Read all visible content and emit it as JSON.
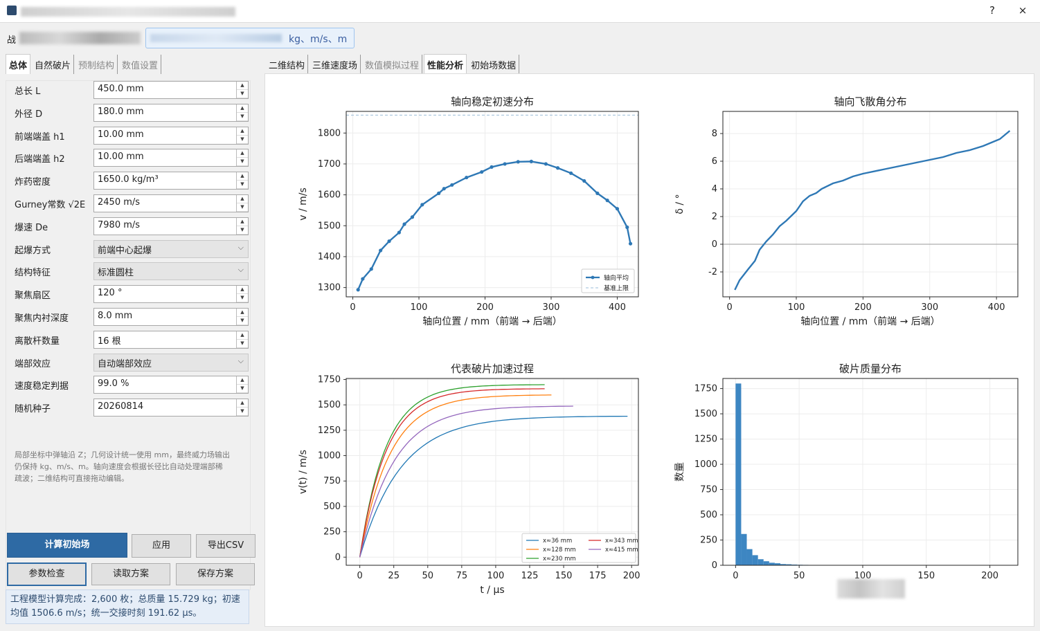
{
  "window": {
    "help_glyph": "?",
    "close_glyph": "×"
  },
  "unitbar": {
    "prefix": "战",
    "units_text": "kg、m/s、m"
  },
  "left_tabs": [
    {
      "label": "总体",
      "active": true
    },
    {
      "label": "自然破片",
      "active": false
    },
    {
      "label": "预制结构",
      "active": false,
      "dim": true
    },
    {
      "label": "数值设置",
      "active": false,
      "dim": true
    }
  ],
  "params": [
    {
      "label": "总长 L",
      "value": "450.0 mm",
      "type": "spin"
    },
    {
      "label": "外径 D",
      "value": "180.0 mm",
      "type": "spin"
    },
    {
      "label": "前端端盖 h1",
      "value": "10.00 mm",
      "type": "spin"
    },
    {
      "label": "后端端盖 h2",
      "value": "10.00 mm",
      "type": "spin"
    },
    {
      "label": "炸药密度",
      "value": "1650.0 kg/m³",
      "type": "spin"
    },
    {
      "label": "Gurney常数 √2E",
      "value": "2450 m/s",
      "type": "spin"
    },
    {
      "label": "爆速 De",
      "value": "7980 m/s",
      "type": "spin"
    },
    {
      "label": "起爆方式",
      "value": "前端中心起爆",
      "type": "combo"
    },
    {
      "label": "结构特征",
      "value": "标准圆柱",
      "type": "combo"
    },
    {
      "label": "聚焦扇区",
      "value": "120 °",
      "type": "spin"
    },
    {
      "label": "聚焦内衬深度",
      "value": "8.0 mm",
      "type": "spin"
    },
    {
      "label": "离散杆数量",
      "value": "16 根",
      "type": "spin"
    },
    {
      "label": "端部效应",
      "value": "自动端部效应",
      "type": "combo"
    },
    {
      "label": "速度稳定判据",
      "value": "99.0 %",
      "type": "spin"
    },
    {
      "label": "随机种子",
      "value": "20260814",
      "type": "spin"
    }
  ],
  "note_lines": [
    "局部坐标中弹轴沿 Z；几何设计统一使用 mm，最终威力场输出",
    "仍保持 kg、m/s、m。轴向速度会根据长径比自动处理端部稀",
    "疏波；二维结构可直接拖动编辑。"
  ],
  "buttons": {
    "compute": "计算初始场",
    "apply": "应用",
    "export_csv": "导出CSV",
    "check": "参数检查",
    "load": "读取方案",
    "save": "保存方案"
  },
  "status_lines": [
    "工程模型计算完成：2,600 枚；总质量 15.729 kg；初速",
    "均值 1506.6 m/s；统一交接时刻 191.62 μs。"
  ],
  "right_tabs": [
    {
      "label": "二维结构",
      "active": false
    },
    {
      "label": "三维速度场",
      "active": false
    },
    {
      "label": "数值模拟过程",
      "active": false,
      "dim": true
    },
    {
      "label": "性能分析",
      "active": true
    },
    {
      "label": "初始场数据",
      "active": false
    }
  ],
  "chart_data": [
    {
      "type": "line",
      "title": "轴向稳定初速分布",
      "xlabel": "轴向位置 / mm（前端 → 后端）",
      "ylabel": "v / m/s",
      "xlim": [
        -10,
        432
      ],
      "ylim": [
        1270,
        1870
      ],
      "xticks": [
        0,
        100,
        200,
        300,
        400
      ],
      "yticks": [
        1300,
        1400,
        1500,
        1600,
        1700,
        1800
      ],
      "series": [
        {
          "name": "轴向平均",
          "marker": true,
          "x": [
            8,
            15,
            28,
            42,
            55,
            70,
            78,
            90,
            105,
            130,
            138,
            150,
            172,
            195,
            210,
            230,
            250,
            270,
            292,
            310,
            330,
            350,
            370,
            385,
            400,
            415,
            420
          ],
          "y": [
            1293,
            1328,
            1360,
            1420,
            1450,
            1478,
            1505,
            1528,
            1568,
            1605,
            1620,
            1632,
            1656,
            1674,
            1690,
            1700,
            1707,
            1708,
            1700,
            1687,
            1670,
            1645,
            1605,
            1582,
            1555,
            1495,
            1442
          ]
        },
        {
          "name": "基准上限",
          "dashed": true,
          "x": [
            -10,
            432
          ],
          "y": [
            1858,
            1858
          ]
        }
      ],
      "legend": "bottom-right"
    },
    {
      "type": "line",
      "title": "轴向飞散角分布",
      "xlabel": "轴向位置 / mm（前端 → 后端）",
      "ylabel": "δ / °",
      "xlim": [
        -10,
        432
      ],
      "ylim": [
        -3.8,
        9.6
      ],
      "xticks": [
        0,
        100,
        200,
        300,
        400
      ],
      "yticks": [
        -2,
        0,
        2,
        4,
        6,
        8
      ],
      "hline": 0,
      "series": [
        {
          "x": [
            8,
            15,
            28,
            38,
            45,
            55,
            65,
            75,
            85,
            100,
            110,
            120,
            130,
            138,
            155,
            170,
            185,
            200,
            230,
            260,
            280,
            300,
            320,
            340,
            360,
            380,
            395,
            405,
            420
          ],
          "y": [
            -3.3,
            -2.6,
            -1.8,
            -1.2,
            -0.4,
            0.2,
            0.7,
            1.3,
            1.7,
            2.4,
            3.1,
            3.5,
            3.7,
            4.0,
            4.4,
            4.6,
            4.9,
            5.1,
            5.4,
            5.7,
            5.9,
            6.1,
            6.3,
            6.6,
            6.8,
            7.1,
            7.4,
            7.6,
            8.2
          ]
        }
      ]
    },
    {
      "type": "line",
      "title": "代表破片加速过程",
      "xlabel": "t / μs",
      "ylabel": "v(t) / m/s",
      "xlim": [
        -10,
        205
      ],
      "ylim": [
        -80,
        1760
      ],
      "xticks": [
        0,
        25,
        50,
        75,
        100,
        125,
        150,
        175,
        200
      ],
      "yticks": [
        0,
        250,
        500,
        750,
        1000,
        1250,
        1500,
        1750
      ],
      "series": [
        {
          "name": "x≈36 mm",
          "color": "#1f77b4",
          "vmax": 1390,
          "tau": 30,
          "tend": 197
        },
        {
          "name": "x≈128 mm",
          "color": "#ff7f0e",
          "vmax": 1600,
          "tau": 22,
          "tend": 141
        },
        {
          "name": "x≈230 mm",
          "color": "#2ca02c",
          "vmax": 1700,
          "tau": 19,
          "tend": 136
        },
        {
          "name": "x≈343 mm",
          "color": "#d62728",
          "vmax": 1660,
          "tau": 19.5,
          "tend": 136
        },
        {
          "name": "x≈415 mm",
          "color": "#9467bd",
          "vmax": 1490,
          "tau": 25,
          "tend": 157
        }
      ],
      "legend": "bottom-right"
    },
    {
      "type": "bar",
      "title": "破片质量分布",
      "xlabel": "",
      "ylabel": "数量",
      "xlim": [
        -10,
        222
      ],
      "ylim": [
        0,
        1850
      ],
      "xticks": [
        0,
        50,
        100,
        150,
        200
      ],
      "yticks": [
        0,
        250,
        500,
        750,
        1000,
        1250,
        1500,
        1750
      ],
      "bin_width": 4.4,
      "bins_start": 0,
      "values": [
        1800,
        310,
        160,
        100,
        60,
        40,
        25,
        20,
        12,
        10,
        7,
        5,
        4,
        3,
        2,
        2,
        1,
        1
      ]
    }
  ]
}
